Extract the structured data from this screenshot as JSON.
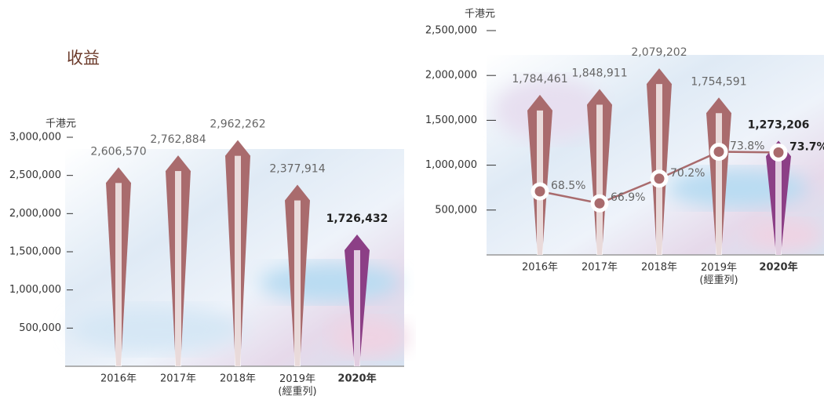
{
  "chart_data": [
    {
      "type": "bar",
      "title": "收益",
      "unit_label": "千港元",
      "categories": [
        "2016年",
        "2017年",
        "2018年",
        "2019年\n(經重列)",
        "2020年"
      ],
      "values": [
        2606570,
        2762884,
        2962262,
        2377914,
        1726432
      ],
      "value_labels": [
        "2,606,570",
        "2,762,884",
        "2,962,262",
        "2,377,914",
        "1,726,432"
      ],
      "colors": [
        "#a96b6d",
        "#a96b6d",
        "#a96b6d",
        "#a96b6d",
        "#8c3f86"
      ],
      "ylim": [
        0,
        3000000
      ],
      "yticks": [
        {
          "value": 500000,
          "label": "500,000"
        },
        {
          "value": 1000000,
          "label": "1,000,000"
        },
        {
          "value": 1500000,
          "label": "1,500,000"
        },
        {
          "value": 2000000,
          "label": "2,000,000"
        },
        {
          "value": 2500000,
          "label": "2,500,000"
        },
        {
          "value": 3000000,
          "label": "3,000,000"
        }
      ]
    },
    {
      "type": "combo",
      "unit_label": "千港元",
      "categories": [
        "2016年",
        "2017年",
        "2018年",
        "2019年\n(經重列)",
        "2020年"
      ],
      "series": [
        {
          "type": "bar",
          "values": [
            1784461,
            1848911,
            2079202,
            1754591,
            1273206
          ],
          "value_labels": [
            "1,784,461",
            "1,848,911",
            "2,079,202",
            "1,754,591",
            "1,273,206"
          ],
          "colors": [
            "#a96b6d",
            "#a96b6d",
            "#a96b6d",
            "#a96b6d",
            "#8c3f86"
          ]
        },
        {
          "type": "line",
          "axis": "y2",
          "color": "#a96b6d",
          "values": [
            68.5,
            66.9,
            70.2,
            73.8,
            73.7
          ],
          "value_labels": [
            "68.5%",
            "66.9%",
            "70.2%",
            "73.8%",
            "73.7%"
          ]
        }
      ],
      "ylim": [
        0,
        2500000
      ],
      "yticks": [
        {
          "value": 500000,
          "label": "500,000"
        },
        {
          "value": 1000000,
          "label": "1,000,000"
        },
        {
          "value": 1500000,
          "label": "1,500,000"
        },
        {
          "value": 2000000,
          "label": "2,000,000"
        },
        {
          "value": 2500000,
          "label": "2,500,000"
        }
      ],
      "y2lim": [
        60,
        90
      ]
    }
  ]
}
